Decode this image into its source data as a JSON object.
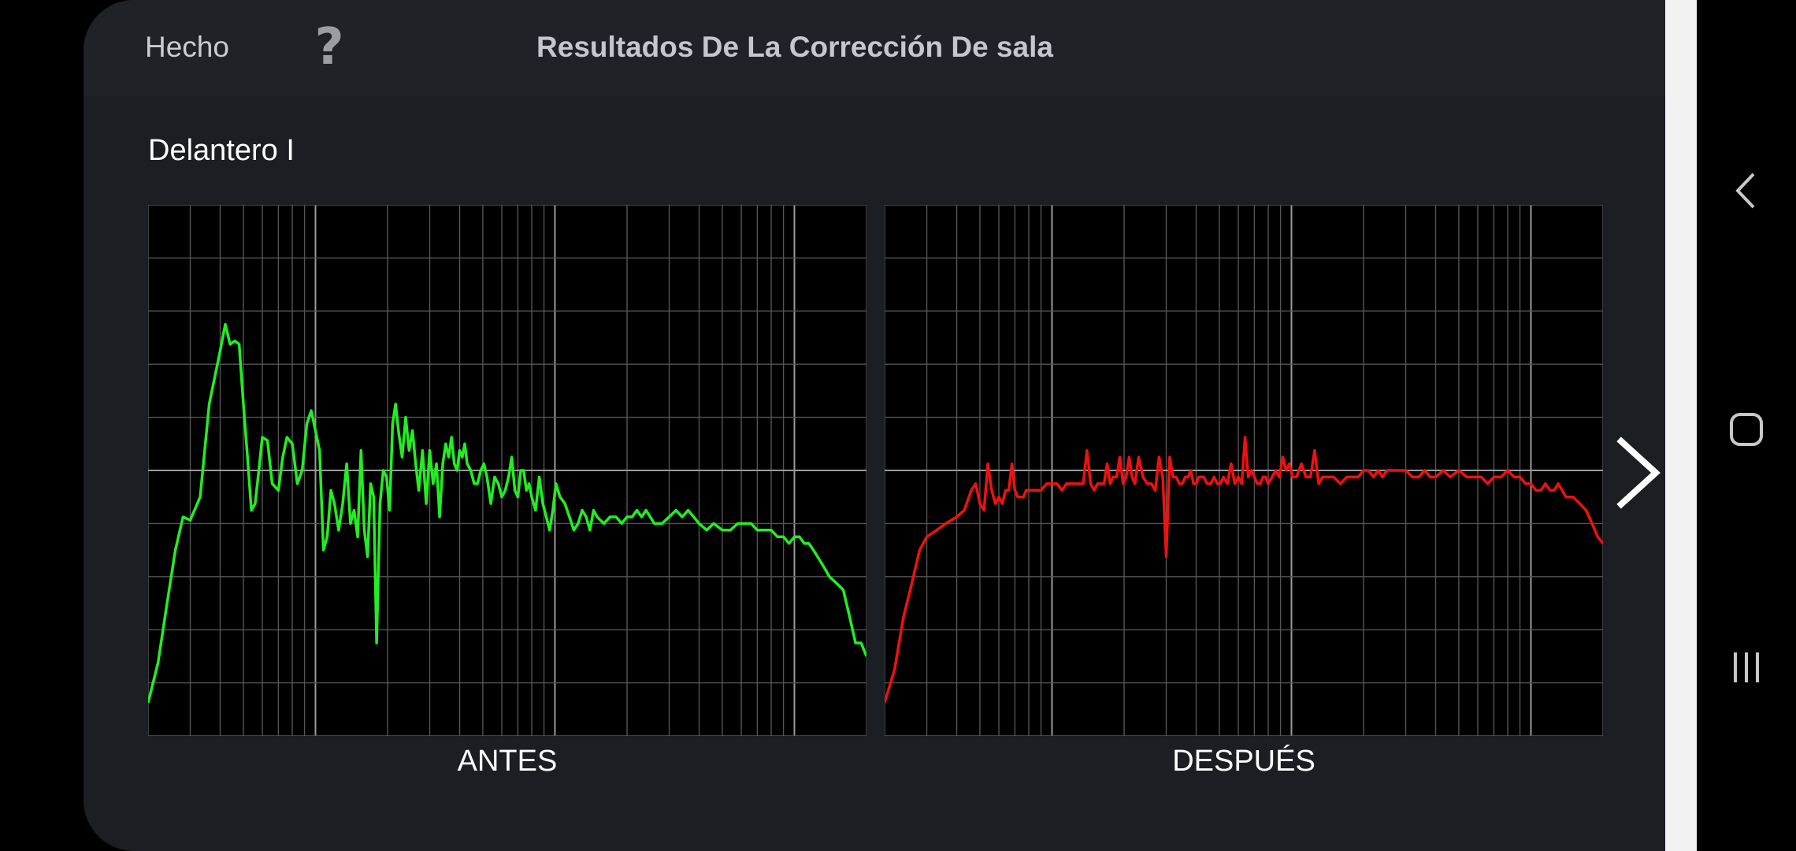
{
  "header": {
    "done_label": "Hecho",
    "help_label": "?",
    "title": "Resultados De La Corrección De sala"
  },
  "channel": {
    "label": "Delantero I"
  },
  "captions": {
    "before": "ANTES",
    "after": "DESPUÉS"
  },
  "icons": {
    "next": "chevron-right-icon",
    "nav_back": "nav-back-icon",
    "nav_home": "nav-home-icon",
    "nav_recents": "nav-recents-icon"
  },
  "colors": {
    "before_curve": "#22ee22",
    "after_curve": "#ee1111",
    "panel_bg": "#1b1e23",
    "header_bg": "#1f2227"
  },
  "chart_data": [
    {
      "type": "line",
      "title": "ANTES",
      "xscale": "log",
      "xlim": [
        20,
        20000
      ],
      "ylim": [
        -40,
        40
      ],
      "grid": true,
      "series": [
        {
          "color": "#22ee22",
          "x": [
            20,
            22,
            24,
            26,
            28,
            30,
            33,
            36,
            40,
            42,
            44,
            46,
            48,
            50,
            52,
            54,
            56,
            58,
            60,
            63,
            66,
            70,
            73,
            76,
            80,
            84,
            88,
            92,
            96,
            100,
            104,
            108,
            112,
            116,
            120,
            125,
            130,
            135,
            140,
            145,
            150,
            155,
            160,
            165,
            170,
            175,
            180,
            186,
            192,
            198,
            204,
            210,
            216,
            222,
            230,
            238,
            246,
            254,
            262,
            270,
            280,
            290,
            300,
            310,
            320,
            330,
            340,
            350,
            360,
            370,
            380,
            390,
            400,
            410,
            420,
            430,
            445,
            460,
            475,
            490,
            505,
            520,
            540,
            560,
            580,
            600,
            620,
            640,
            660,
            680,
            700,
            720,
            740,
            760,
            780,
            800,
            830,
            860,
            890,
            920,
            950,
            980,
            1010,
            1050,
            1100,
            1150,
            1200,
            1250,
            1300,
            1350,
            1400,
            1450,
            1500,
            1600,
            1700,
            1800,
            1900,
            2000,
            2100,
            2200,
            2300,
            2400,
            2500,
            2600,
            2800,
            3000,
            3200,
            3400,
            3600,
            3800,
            4000,
            4300,
            4600,
            5000,
            5400,
            5800,
            6200,
            6600,
            7000,
            7500,
            8000,
            8500,
            9000,
            9500,
            10000,
            10500,
            11000,
            11500,
            12000,
            12500,
            13000,
            13500,
            14000,
            15000,
            16000,
            17000,
            18000,
            19000,
            20000
          ],
          "y": [
            -35,
            -29,
            -20,
            -12,
            -7,
            -7.5,
            -4,
            10,
            18,
            22,
            19,
            19.5,
            19,
            10,
            2,
            -6,
            -5,
            0,
            5,
            4.5,
            -2,
            -3,
            2,
            5,
            4,
            -2,
            0,
            7,
            9,
            6,
            3,
            -12,
            -10,
            -3,
            -5,
            -9,
            -5,
            1,
            -8,
            -6,
            -10,
            3,
            -9,
            -13,
            -2,
            -4,
            -26,
            -5,
            0,
            -1,
            -6,
            7,
            10,
            6,
            2,
            8,
            3,
            6,
            1,
            -3,
            3,
            -5,
            3,
            -2,
            1,
            -7,
            1,
            4,
            2,
            5,
            1,
            0,
            3,
            2,
            4,
            1,
            0,
            -2,
            -2,
            0,
            1,
            -1,
            -5,
            -1,
            -2,
            -4,
            -3,
            -1,
            2,
            -3,
            -4,
            0,
            0,
            -3,
            -2,
            -4,
            -6,
            -1,
            -5,
            -7,
            -9,
            -6,
            -2,
            -4,
            -5,
            -7,
            -9,
            -8,
            -6,
            -7,
            -9,
            -6,
            -7,
            -8,
            -7,
            -7,
            -8,
            -7,
            -7,
            -6,
            -7,
            -6,
            -7,
            -8,
            -8,
            -7,
            -6,
            -7,
            -6,
            -7,
            -8,
            -9,
            -8,
            -9,
            -9,
            -8,
            -8,
            -8,
            -9,
            -9,
            -9,
            -10,
            -10,
            -11,
            -10,
            -10,
            -11,
            -11,
            -12,
            -13,
            -14,
            -15,
            -16,
            -17,
            -18,
            -22,
            -26,
            -26,
            -28
          ]
        }
      ]
    },
    {
      "type": "line",
      "title": "DESPUÉS",
      "xscale": "log",
      "xlim": [
        20,
        20000
      ],
      "ylim": [
        -40,
        40
      ],
      "grid": true,
      "series": [
        {
          "color": "#ee1111",
          "x": [
            20,
            22,
            24,
            26,
            28,
            30,
            33,
            36,
            40,
            43,
            46,
            48,
            50,
            52,
            54,
            56,
            58,
            60,
            62,
            64,
            66,
            68,
            70,
            72,
            74,
            76,
            78,
            80,
            85,
            90,
            95,
            100,
            105,
            110,
            115,
            120,
            125,
            130,
            135,
            140,
            145,
            150,
            155,
            160,
            165,
            170,
            175,
            180,
            186,
            192,
            198,
            204,
            210,
            216,
            222,
            230,
            240,
            250,
            260,
            270,
            280,
            290,
            300,
            310,
            320,
            330,
            340,
            350,
            360,
            370,
            380,
            390,
            400,
            410,
            420,
            430,
            445,
            460,
            475,
            490,
            505,
            520,
            540,
            560,
            580,
            600,
            620,
            640,
            660,
            680,
            700,
            720,
            740,
            760,
            780,
            800,
            830,
            860,
            890,
            920,
            950,
            980,
            1010,
            1050,
            1100,
            1150,
            1200,
            1250,
            1300,
            1350,
            1400,
            1450,
            1500,
            1600,
            1700,
            1800,
            1900,
            2000,
            2100,
            2200,
            2300,
            2400,
            2500,
            2600,
            2800,
            3000,
            3200,
            3400,
            3600,
            3800,
            4000,
            4300,
            4600,
            5000,
            5400,
            5800,
            6200,
            6600,
            7000,
            7500,
            8000,
            8500,
            9000,
            9500,
            10000,
            10500,
            11000,
            11500,
            12000,
            12500,
            13000,
            13500,
            14000,
            15000,
            16000,
            17000,
            18000,
            19000,
            20000
          ],
          "y": [
            -35,
            -30,
            -22,
            -17,
            -12,
            -10,
            -9,
            -8,
            -7,
            -6,
            -3,
            -2,
            -5,
            -6,
            1,
            -3,
            -5,
            -4,
            -5,
            -3,
            -3,
            1,
            -3,
            -4,
            -4,
            -4,
            -3,
            -3,
            -3,
            -3,
            -2,
            -2,
            -2,
            -3,
            -2,
            -2,
            -2,
            -2,
            -2,
            3,
            -2,
            -3,
            -2,
            -2,
            -2,
            1,
            -2,
            -1,
            -1,
            2,
            -2,
            -1,
            2,
            -1,
            -2,
            2,
            -1,
            -2,
            -2,
            -3,
            2,
            -1,
            -13,
            2,
            -1,
            -1,
            -2,
            -2,
            -1,
            -1,
            0,
            -2,
            -2,
            -1,
            -1,
            -1,
            -2,
            -2,
            -1,
            -2,
            -2,
            -1,
            -2,
            1,
            -2,
            -1,
            -2,
            5,
            -1,
            0,
            -1,
            -2,
            -2,
            -1,
            -1,
            -2,
            -1,
            0,
            -1,
            2,
            0,
            1,
            -1,
            -1,
            1,
            -1,
            -1,
            3,
            -2,
            -1,
            -1,
            -1,
            -1,
            -2,
            -1,
            -1,
            -1,
            0,
            0,
            -1,
            0,
            -1,
            0,
            0,
            0,
            0,
            -1,
            -1,
            0,
            -1,
            -1,
            0,
            -1,
            0,
            -1,
            -1,
            -1,
            -2,
            -1,
            -1,
            0,
            -1,
            -1,
            -2,
            -2,
            -3,
            -3,
            -2,
            -3,
            -3,
            -2,
            -3,
            -4,
            -4,
            -5,
            -6,
            -8,
            -10,
            -11
          ]
        }
      ]
    }
  ]
}
